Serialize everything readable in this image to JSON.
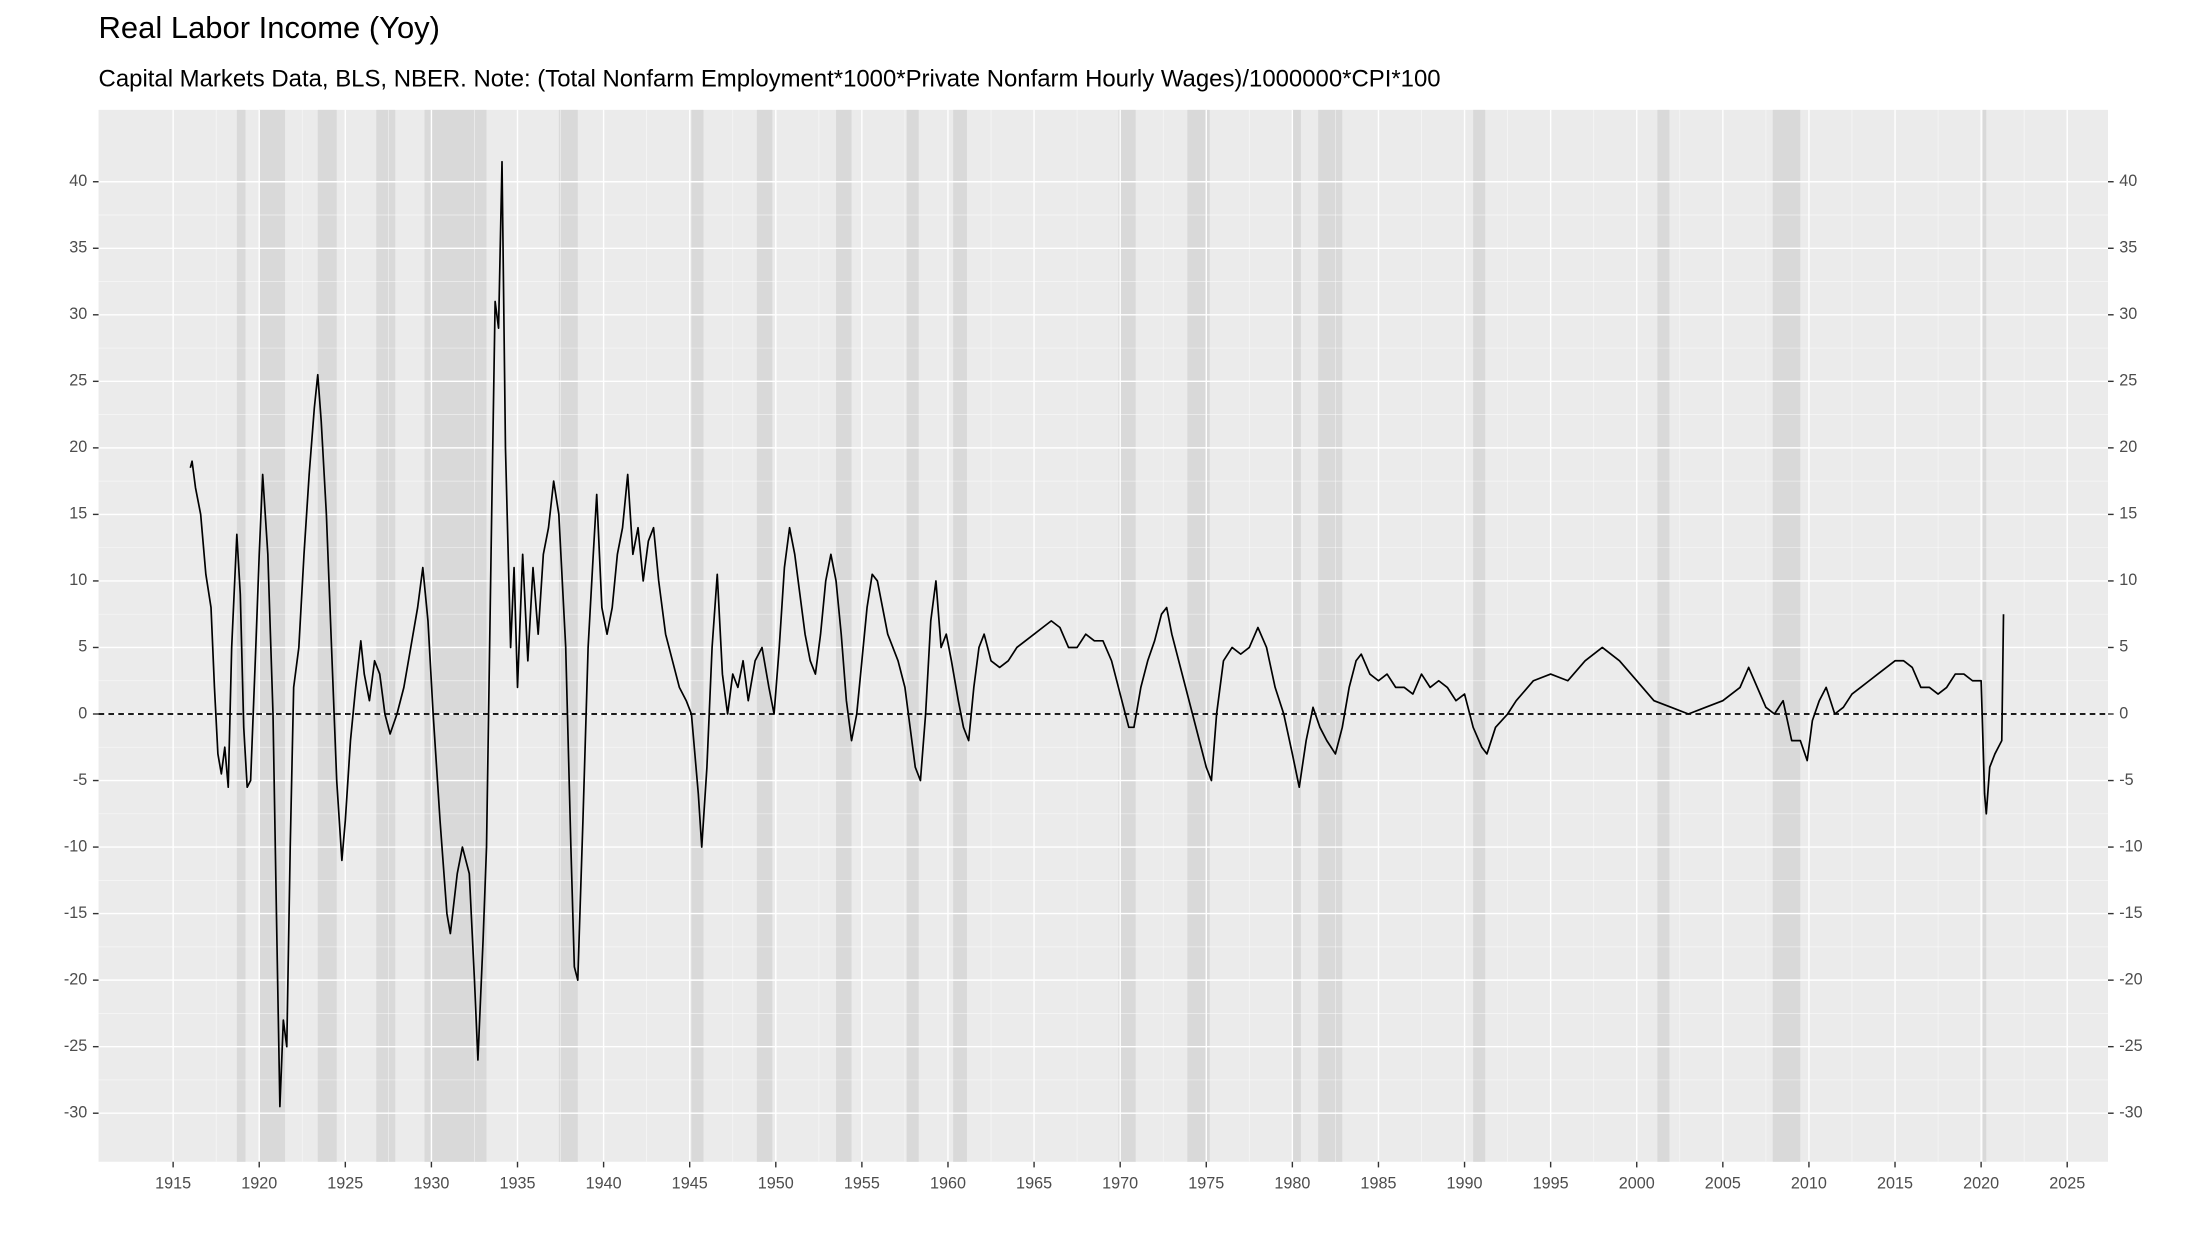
{
  "chart_data": {
    "type": "line",
    "title": "Real Labor Income (Yoy)",
    "subtitle": "Capital Markets Data, BLS, NBER. Note: (Total Nonfarm Employment*1000*Private Nonfarm Hourly Wages)/1000000*CPI*100",
    "x": [
      1916.0,
      1916.1,
      1916.3,
      1916.6,
      1916.9,
      1917.2,
      1917.4,
      1917.6,
      1917.8,
      1918.0,
      1918.2,
      1918.4,
      1918.7,
      1918.9,
      1919.1,
      1919.3,
      1919.5,
      1919.8,
      1920.0,
      1920.2,
      1920.5,
      1920.8,
      1921.0,
      1921.2,
      1921.4,
      1921.6,
      1921.8,
      1922.0,
      1922.3,
      1922.6,
      1922.9,
      1923.2,
      1923.4,
      1923.6,
      1923.9,
      1924.2,
      1924.5,
      1924.8,
      1925.0,
      1925.3,
      1925.6,
      1925.9,
      1926.1,
      1926.4,
      1926.7,
      1927.0,
      1927.3,
      1927.6,
      1928.0,
      1928.4,
      1928.8,
      1929.2,
      1929.5,
      1929.8,
      1930.1,
      1930.5,
      1930.9,
      1931.1,
      1931.5,
      1931.8,
      1932.2,
      1932.5,
      1932.7,
      1933.0,
      1933.2,
      1933.5,
      1933.7,
      1933.9,
      1934.1,
      1934.3,
      1934.6,
      1934.8,
      1935.0,
      1935.3,
      1935.6,
      1935.9,
      1936.2,
      1936.5,
      1936.8,
      1937.1,
      1937.4,
      1937.8,
      1938.1,
      1938.3,
      1938.5,
      1938.8,
      1939.1,
      1939.4,
      1939.6,
      1939.9,
      1940.2,
      1940.5,
      1940.8,
      1941.1,
      1941.4,
      1941.7,
      1942.0,
      1942.3,
      1942.6,
      1942.9,
      1943.2,
      1943.6,
      1944.0,
      1944.4,
      1944.8,
      1945.1,
      1945.5,
      1945.7,
      1946.0,
      1946.3,
      1946.6,
      1946.9,
      1947.2,
      1947.5,
      1947.8,
      1948.1,
      1948.4,
      1948.8,
      1949.2,
      1949.6,
      1949.9,
      1950.2,
      1950.5,
      1950.8,
      1951.1,
      1951.4,
      1951.7,
      1952.0,
      1952.3,
      1952.6,
      1952.9,
      1953.2,
      1953.5,
      1953.8,
      1954.1,
      1954.4,
      1954.7,
      1955.0,
      1955.3,
      1955.6,
      1955.9,
      1956.2,
      1956.5,
      1956.8,
      1957.1,
      1957.5,
      1957.8,
      1958.1,
      1958.4,
      1958.7,
      1959.0,
      1959.3,
      1959.6,
      1959.9,
      1960.2,
      1960.6,
      1960.9,
      1961.2,
      1961.5,
      1961.8,
      1962.1,
      1962.5,
      1963.0,
      1963.5,
      1964.0,
      1964.5,
      1965.0,
      1965.5,
      1966.0,
      1966.5,
      1967.0,
      1967.5,
      1968.0,
      1968.5,
      1969.0,
      1969.5,
      1970.0,
      1970.5,
      1970.8,
      1971.2,
      1971.6,
      1972.0,
      1972.4,
      1972.7,
      1973.0,
      1973.4,
      1973.8,
      1974.2,
      1974.6,
      1975.0,
      1975.3,
      1975.6,
      1976.0,
      1976.5,
      1977.0,
      1977.5,
      1978.0,
      1978.5,
      1979.0,
      1979.5,
      1980.0,
      1980.4,
      1980.8,
      1981.2,
      1981.6,
      1982.0,
      1982.5,
      1982.9,
      1983.3,
      1983.7,
      1984.0,
      1984.5,
      1985.0,
      1985.5,
      1986.0,
      1986.5,
      1987.0,
      1987.5,
      1988.0,
      1988.5,
      1989.0,
      1989.5,
      1990.0,
      1990.5,
      1991.0,
      1991.3,
      1991.8,
      1992.5,
      1993.0,
      1994.0,
      1995.0,
      1996.0,
      1997.0,
      1998.0,
      1999.0,
      2000.0,
      2001.0,
      2002.0,
      2003.0,
      2004.0,
      2005.0,
      2006.0,
      2006.5,
      2007.0,
      2007.5,
      2008.0,
      2008.5,
      2009.0,
      2009.5,
      2009.9,
      2010.2,
      2010.6,
      2011.0,
      2011.5,
      2012.0,
      2012.5,
      2013.0,
      2013.5,
      2014.0,
      2014.5,
      2015.0,
      2015.5,
      2016.0,
      2016.5,
      2017.0,
      2017.5,
      2018.0,
      2018.5,
      2019.0,
      2019.5,
      2020.0,
      2020.2,
      2020.3,
      2020.5,
      2020.8,
      2021.0,
      2021.2,
      2021.3
    ],
    "series": [
      {
        "color": "#000000",
        "values": [
          18.5,
          19,
          17,
          15,
          10.5,
          8,
          2,
          -3,
          -4.5,
          -2.5,
          -5.5,
          5,
          13.5,
          9,
          -1,
          -5.5,
          -5,
          5,
          12,
          18,
          12,
          0,
          -15,
          -29.5,
          -23,
          -25,
          -10,
          2,
          5,
          12,
          18,
          23,
          25.5,
          22,
          15,
          5,
          -5,
          -11,
          -8,
          -2,
          2,
          5.5,
          3,
          1,
          4,
          3,
          0,
          -1.5,
          0,
          2,
          5,
          8,
          11,
          7,
          0,
          -8,
          -15,
          -16.5,
          -12,
          -10,
          -12,
          -20,
          -26,
          -17,
          -10,
          15,
          31,
          29,
          41.5,
          20,
          5,
          11,
          2,
          12,
          4,
          11,
          6,
          12,
          14,
          17.5,
          15,
          5,
          -10,
          -19,
          -20,
          -8,
          5,
          12,
          16.5,
          8,
          6,
          8,
          12,
          14,
          18,
          12,
          14,
          10,
          13,
          14,
          10,
          6,
          4,
          2,
          1,
          0,
          -6,
          -10,
          -4,
          5,
          10.5,
          3,
          0,
          3,
          2,
          4,
          1,
          4,
          5,
          2,
          0,
          5,
          11,
          14,
          12,
          9,
          6,
          4,
          3,
          6,
          10,
          12,
          10,
          6,
          1,
          -2,
          0,
          4,
          8,
          10.5,
          10,
          8,
          6,
          5,
          4,
          2,
          -1,
          -4,
          -5,
          0,
          7,
          10,
          5,
          6,
          4,
          1,
          -1,
          -2,
          2,
          5,
          6,
          4,
          3.5,
          4,
          5,
          5.5,
          6,
          6.5,
          7,
          6.5,
          5,
          5,
          6,
          5.5,
          5.5,
          4,
          1.5,
          -1,
          -1,
          2,
          4,
          5.5,
          7.5,
          8,
          6,
          4,
          2,
          0,
          -2,
          -4,
          -5,
          0,
          4,
          5,
          4.5,
          5,
          6.5,
          5,
          2,
          0,
          -3,
          -5.5,
          -2,
          0.5,
          -1,
          -2,
          -3,
          -1,
          2,
          4,
          4.5,
          3,
          2.5,
          3,
          2,
          2,
          1.5,
          3,
          2,
          2.5,
          2,
          1,
          1.5,
          -1,
          -2.5,
          -3,
          -1,
          0,
          1,
          2.5,
          3,
          2.5,
          4,
          5,
          4,
          2.5,
          1,
          0.5,
          0,
          0.5,
          1,
          2,
          3.5,
          2,
          0.5,
          0,
          1,
          -2,
          -2,
          -3.5,
          -0.5,
          1,
          2,
          0,
          0.5,
          1.5,
          2,
          2.5,
          3,
          3.5,
          4,
          4,
          3.5,
          2,
          2,
          1.5,
          2,
          3,
          3,
          2.5,
          2.5,
          -6,
          -7.5,
          -4,
          -3,
          -2.5,
          -2,
          7.5
        ]
      }
    ],
    "recessions": [
      [
        1918.7,
        1919.2
      ],
      [
        1920.0,
        1921.5
      ],
      [
        1923.4,
        1924.5
      ],
      [
        1926.8,
        1927.9
      ],
      [
        1929.6,
        1933.2
      ],
      [
        1937.4,
        1938.5
      ],
      [
        1945.1,
        1945.8
      ],
      [
        1948.9,
        1949.8
      ],
      [
        1953.5,
        1954.4
      ],
      [
        1957.6,
        1958.3
      ],
      [
        1960.3,
        1961.1
      ],
      [
        1969.9,
        1970.9
      ],
      [
        1973.9,
        1975.2
      ],
      [
        1980.0,
        1980.5
      ],
      [
        1981.5,
        1982.9
      ],
      [
        1990.5,
        1991.2
      ],
      [
        2001.2,
        2001.9
      ],
      [
        2007.9,
        2009.5
      ],
      [
        2020.1,
        2020.3
      ]
    ],
    "recession_color": "#d9d9d9",
    "hline": 0,
    "xlim": [
      1910.67,
      2027.37
    ],
    "ylim": [
      -33.65,
      45.4
    ],
    "xticks": [
      1915,
      1920,
      1925,
      1930,
      1935,
      1940,
      1945,
      1950,
      1955,
      1960,
      1965,
      1970,
      1975,
      1980,
      1985,
      1990,
      1995,
      2000,
      2005,
      2010,
      2015,
      2020,
      2025
    ],
    "yticks": [
      -30,
      -25,
      -20,
      -15,
      -10,
      -5,
      0,
      5,
      10,
      15,
      20,
      25,
      30,
      35,
      40
    ],
    "grid": true
  }
}
